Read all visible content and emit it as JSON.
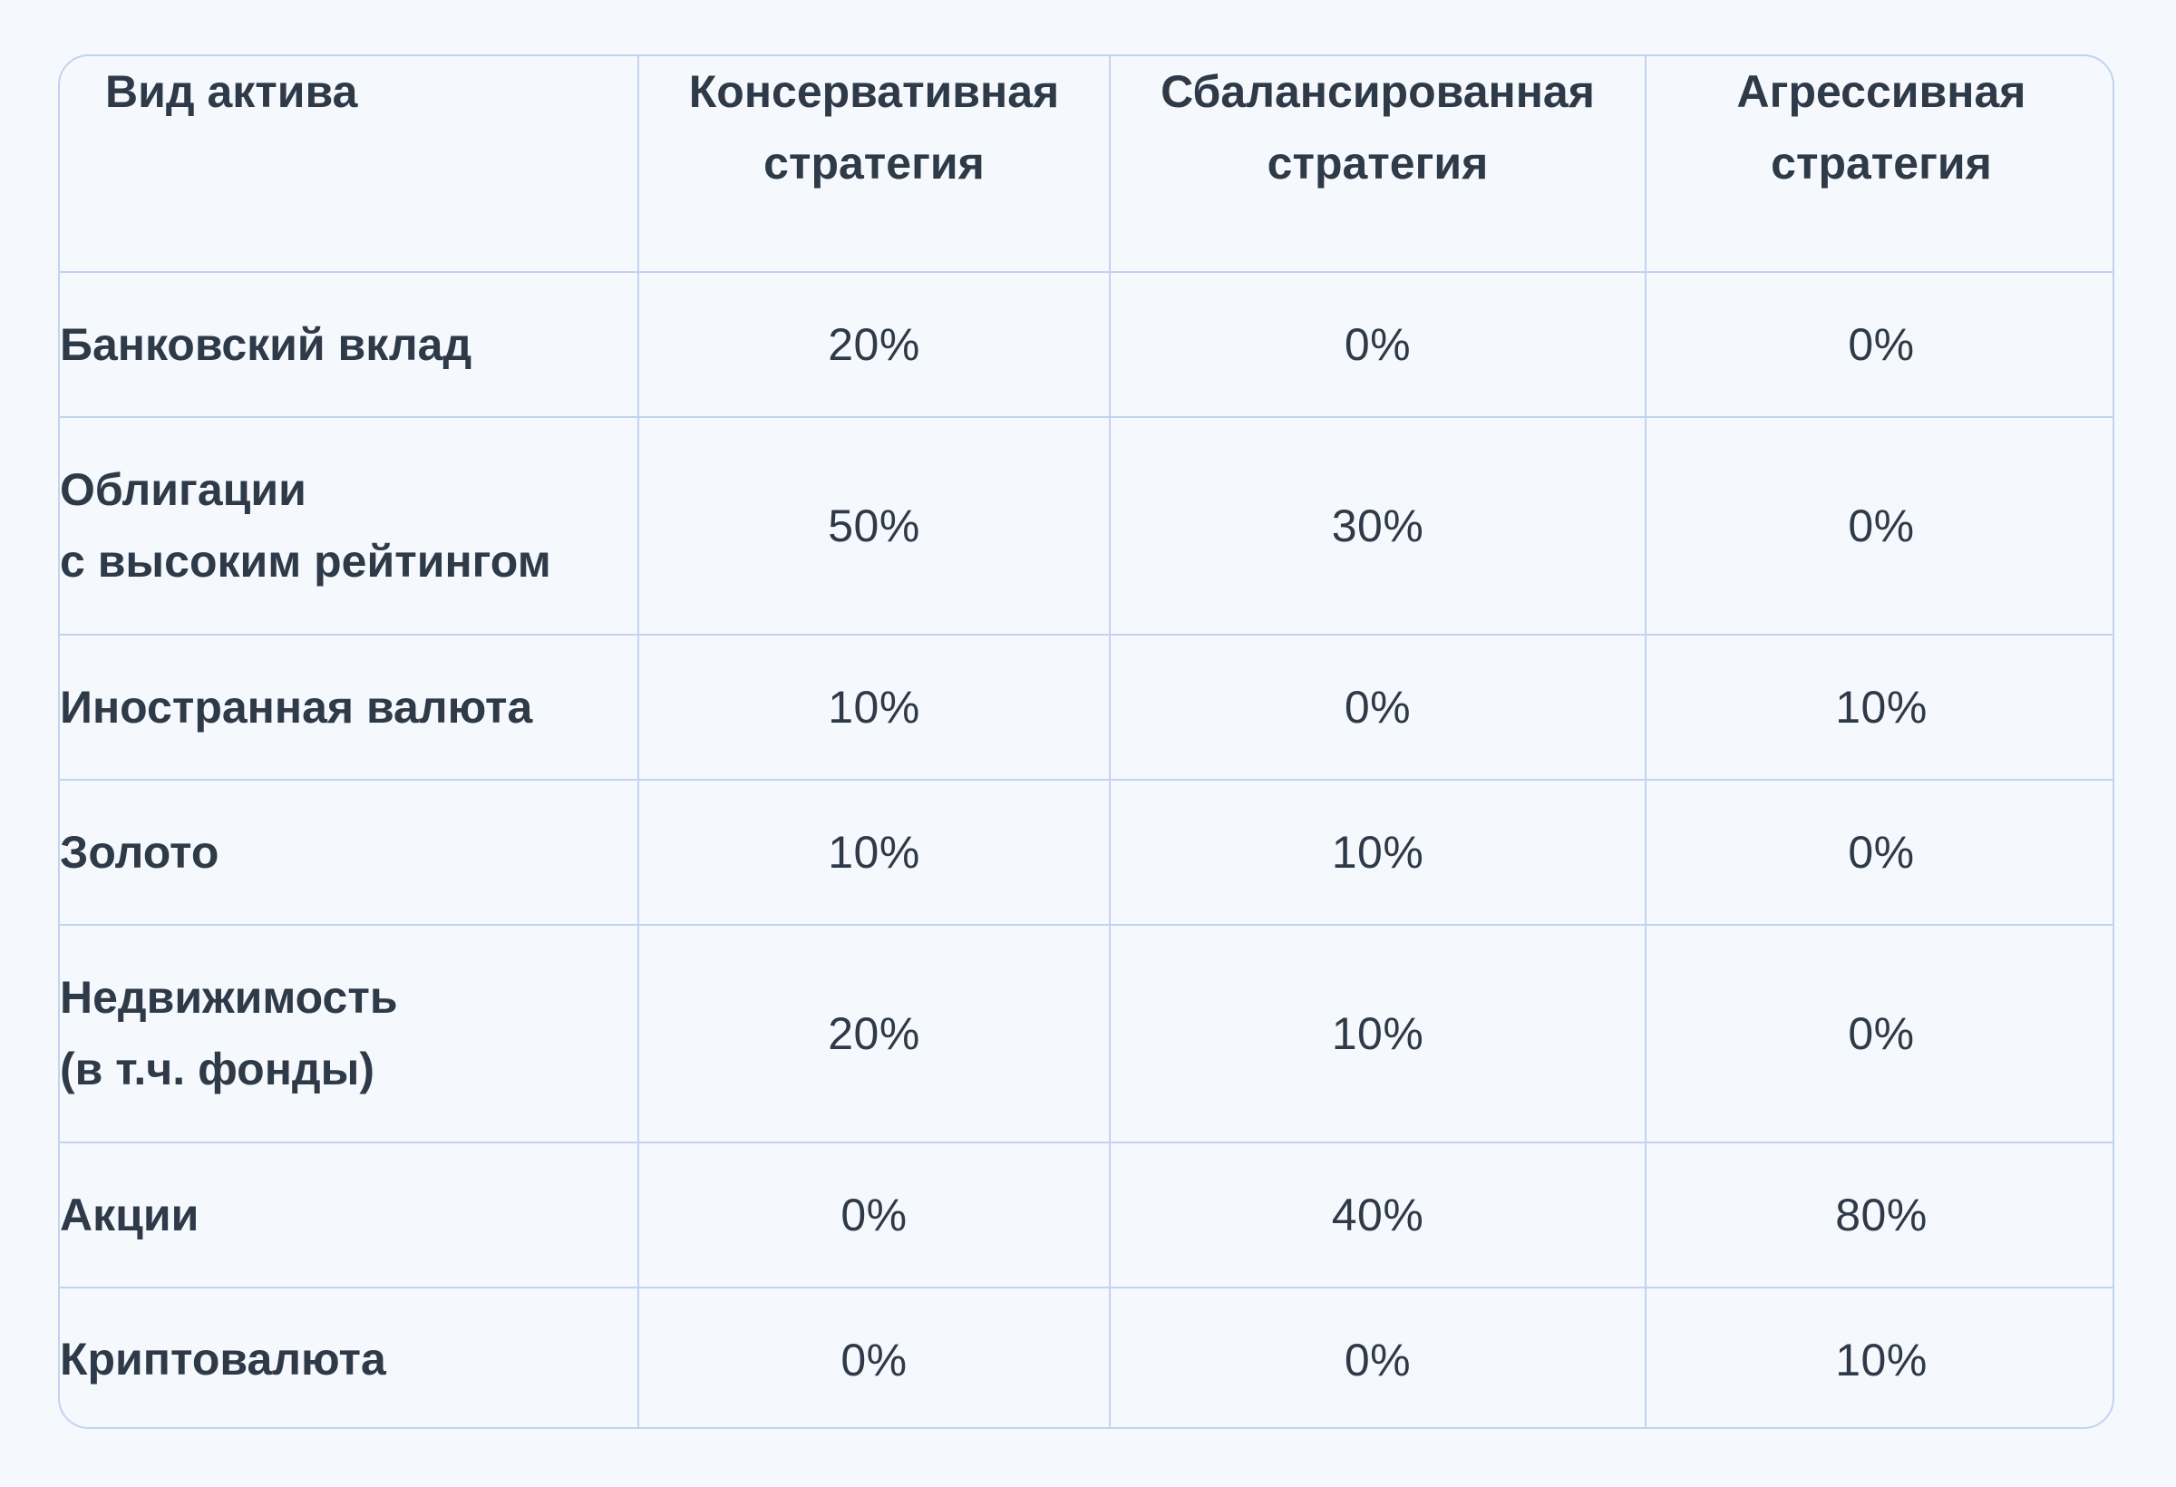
{
  "table": {
    "headers": [
      "Вид актива",
      "Консервативная\nстратегия",
      "Сбалансированная\nстратегия",
      "Агрессивная\nстратегия"
    ],
    "rows": [
      {
        "asset": "Банковский вклад",
        "values": [
          "20%",
          "0%",
          "0%"
        ]
      },
      {
        "asset": "Облигации\nс высоким рейтингом",
        "values": [
          "50%",
          "30%",
          "0%"
        ]
      },
      {
        "asset": "Иностранная валюта",
        "values": [
          "10%",
          "0%",
          "10%"
        ]
      },
      {
        "asset": "Золото",
        "values": [
          "10%",
          "10%",
          "0%"
        ]
      },
      {
        "asset": "Недвижимость\n(в т.ч. фонды)",
        "values": [
          "20%",
          "10%",
          "0%"
        ]
      },
      {
        "asset": "Акции",
        "values": [
          "0%",
          "40%",
          "80%"
        ]
      },
      {
        "asset": "Криптовалюта",
        "values": [
          "0%",
          "0%",
          "10%"
        ]
      }
    ]
  },
  "colors": {
    "background": "#f5f9fe",
    "border": "#c2d2f0",
    "text": "#2f3a48"
  }
}
